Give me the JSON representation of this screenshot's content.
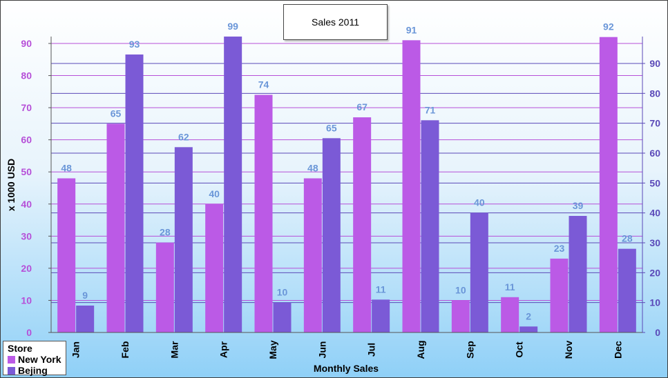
{
  "chart_data": {
    "type": "bar",
    "title": "Sales 2011",
    "xlabel": "Monthly Sales",
    "ylabel": "x 1000 USD",
    "categories": [
      "Jan",
      "Feb",
      "Mar",
      "Apr",
      "May",
      "Jun",
      "Jul",
      "Aug",
      "Sep",
      "Oct",
      "Nov",
      "Dec"
    ],
    "series": [
      {
        "name": "New York",
        "values": [
          48,
          65,
          28,
          40,
          74,
          48,
          67,
          91,
          10,
          11,
          23,
          92
        ],
        "color": "#bb5ae6",
        "axis": "left"
      },
      {
        "name": "Bejing",
        "values": [
          9,
          93,
          62,
          99,
          10,
          65,
          11,
          71,
          40,
          2,
          39,
          28
        ],
        "color": "#7b5ad6",
        "axis": "right"
      }
    ],
    "y_left": {
      "ylim": [
        0,
        92
      ],
      "ticks": [
        0,
        10,
        20,
        30,
        40,
        50,
        60,
        70,
        80,
        90
      ],
      "color": "#b64fd8"
    },
    "y_right": {
      "ylim": [
        0,
        99
      ],
      "ticks": [
        0,
        10,
        20,
        30,
        40,
        50,
        60,
        70,
        80,
        90
      ],
      "color": "#5a48b8"
    },
    "legend": {
      "title": "Store",
      "placement": "bottom-left"
    },
    "grid": true
  }
}
